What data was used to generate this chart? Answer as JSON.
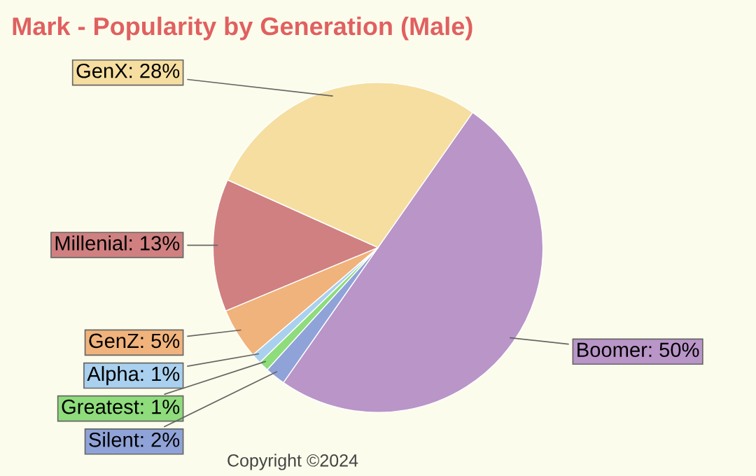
{
  "chart_data": {
    "type": "pie",
    "title": "Mark - Popularity by Generation (Male)",
    "categories": [
      "Boomer",
      "Silent",
      "Greatest",
      "Alpha",
      "GenZ",
      "Millenial",
      "GenX"
    ],
    "values": [
      50,
      2,
      1,
      1,
      5,
      13,
      28
    ],
    "colors": [
      "#b995c8",
      "#8fa3d8",
      "#8edc7c",
      "#a9d0ee",
      "#f0b37c",
      "#d08080",
      "#f5dea0"
    ],
    "value_labels": [
      "50%",
      "2%",
      "1%",
      "1%",
      "5%",
      "13%",
      "28%"
    ],
    "annotations": [
      "Copyright ©2024"
    ],
    "legend": false
  }
}
